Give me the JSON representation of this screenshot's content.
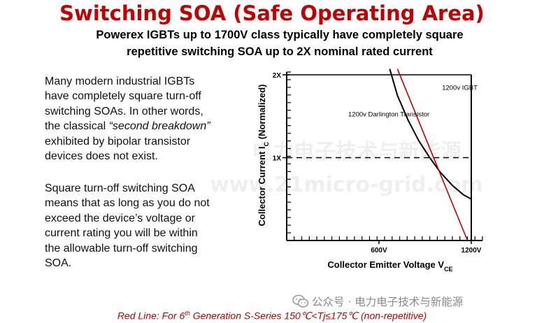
{
  "title": "Switching SOA (Safe Operating Area)",
  "subtitle_line1": "Powerex IGBTs up to 1700V class typically have completely square",
  "subtitle_line2": "repetitive switching SOA up to 2X nominal rated current",
  "para1": {
    "line1": "Many modern industrial IGBTs",
    "line2": "have completely square turn-off",
    "line3": "switching SOAs.  In other words,",
    "line4_pre": "the classical ",
    "line4_italic": "“second breakdown”",
    "line5": "exhibited by bipolar transistor",
    "line6": "devices does not exist."
  },
  "para2": {
    "line1": "Square turn-off switching SOA",
    "line2": "means that as long as you do not",
    "line3": "exceed the device’s voltage or",
    "line4": "current rating you will be within",
    "line5": "the allowable turn-off switching",
    "line6": "SOA."
  },
  "chart_data": {
    "type": "line",
    "xlabel": "Collector Emitter Voltage V",
    "xlabel_sub": "CE",
    "ylabel": "Collector Current I",
    "ylabel_sub": "C",
    "ylabel_suffix": " (Normalized)",
    "x_ticks": [
      {
        "value": 600,
        "label": "600V"
      },
      {
        "value": 1200,
        "label": "1200V"
      }
    ],
    "y_ticks": [
      {
        "value": 1,
        "label": "1X"
      },
      {
        "value": 2,
        "label": "2X"
      }
    ],
    "xlim": [
      0,
      1300
    ],
    "ylim": [
      0,
      2.07
    ],
    "dashed_ref": {
      "y": 1,
      "x_end": 1200
    },
    "series": [
      {
        "name": "1200v IGBT",
        "style": "solid",
        "color": "#000000",
        "points": [
          [
            1200,
            0
          ],
          [
            1200,
            2
          ]
        ]
      },
      {
        "name": "1200v Darlington Transistor",
        "style": "solid",
        "color": "#000000",
        "points": [
          [
            670,
            2.07
          ],
          [
            720,
            1.75
          ],
          [
            790,
            1.45
          ],
          [
            860,
            1.2
          ],
          [
            930,
            1.0
          ],
          [
            1000,
            0.82
          ],
          [
            1080,
            0.66
          ],
          [
            1150,
            0.55
          ],
          [
            1200,
            0.5
          ]
        ]
      },
      {
        "name": "Red Line",
        "style": "solid",
        "color": "#c00000",
        "points": [
          [
            720,
            2.07
          ],
          [
            1175,
            0
          ]
        ]
      }
    ],
    "annotations": [
      {
        "text": "1200v IGBT",
        "x": 1010,
        "y": 1.82
      },
      {
        "text": "1200v Darlington Transistor",
        "x": 400,
        "y": 1.5
      }
    ]
  },
  "footer": {
    "pre": "Red Line: For 6",
    "sup": "th",
    "post": " Generation S-Series 150℃<Tj≤175℃ (non-repetitive)"
  },
  "watermark": {
    "line1": "电力电子技术与新能源",
    "line2": "www.21micro-grid.com",
    "badge": "公众号 · 电力电子技术与新能源"
  }
}
